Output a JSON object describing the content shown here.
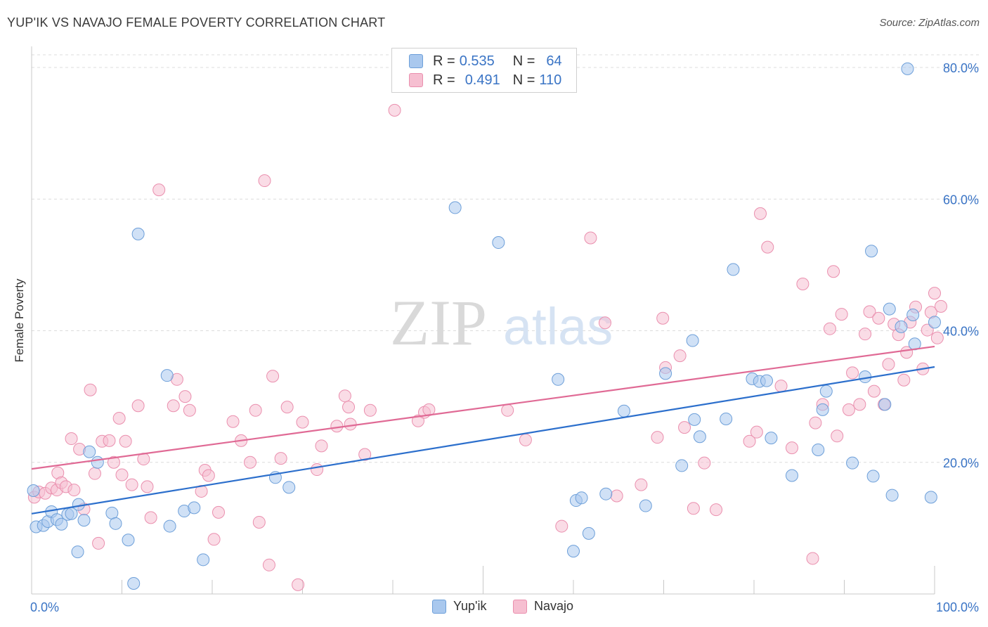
{
  "title": "YUP'IK VS NAVAJO FEMALE POVERTY CORRELATION CHART",
  "source": "Source: ZipAtlas.com",
  "watermark": {
    "zip": "ZIP",
    "atlas": "atlas"
  },
  "legend": {
    "rows": [
      {
        "r_label": "R =",
        "r_value": "0.535",
        "n_label": "N =",
        "n_value": "64"
      },
      {
        "r_label": "R =",
        "r_value": "0.491",
        "n_label": "N =",
        "n_value": "110"
      }
    ]
  },
  "colors": {
    "yupik_fill": "#a9c8ee",
    "yupik_stroke": "#6d9fd9",
    "yupik_line": "#2c6fcc",
    "navajo_fill": "#f6bfd1",
    "navajo_stroke": "#ea8fae",
    "navajo_line": "#e06a95",
    "axis_label": "#3a74c5"
  },
  "chart_data": {
    "type": "scatter",
    "title": "YUP'IK VS NAVAJO FEMALE POVERTY CORRELATION CHART",
    "xlabel": "",
    "ylabel": "Female Poverty",
    "xlim": [
      0,
      100
    ],
    "ylim": [
      0,
      80
    ],
    "x_tick_labels": [
      "0.0%",
      "100.0%"
    ],
    "y_tick_labels": [
      "20.0%",
      "40.0%",
      "60.0%",
      "80.0%"
    ],
    "y_ticks": [
      20,
      40,
      60,
      80
    ],
    "grid": true,
    "legend_position": "top-center",
    "series": [
      {
        "name": "Yup'ik",
        "r": 0.535,
        "n": 64,
        "trend": {
          "x": [
            0,
            100
          ],
          "y": [
            12.2,
            34.5
          ]
        },
        "points": [
          [
            0.2,
            15.7
          ],
          [
            0.5,
            10.2
          ],
          [
            1.3,
            10.4
          ],
          [
            1.8,
            11.0
          ],
          [
            2.2,
            12.5
          ],
          [
            2.8,
            11.3
          ],
          [
            3.3,
            10.6
          ],
          [
            4.0,
            12.1
          ],
          [
            4.4,
            12.2
          ],
          [
            5.2,
            13.6
          ],
          [
            5.8,
            11.2
          ],
          [
            6.4,
            21.6
          ],
          [
            5.1,
            6.4
          ],
          [
            7.3,
            20.0
          ],
          [
            8.9,
            12.3
          ],
          [
            9.3,
            10.7
          ],
          [
            10.7,
            8.2
          ],
          [
            11.3,
            1.6
          ],
          [
            11.8,
            54.7
          ],
          [
            15.0,
            33.2
          ],
          [
            15.3,
            10.3
          ],
          [
            16.9,
            12.6
          ],
          [
            18.0,
            13.1
          ],
          [
            19.0,
            5.2
          ],
          [
            27.0,
            17.7
          ],
          [
            28.5,
            16.2
          ],
          [
            46.9,
            58.7
          ],
          [
            51.7,
            53.4
          ],
          [
            58.3,
            32.6
          ],
          [
            60.0,
            6.5
          ],
          [
            60.3,
            14.2
          ],
          [
            60.9,
            14.6
          ],
          [
            61.7,
            9.2
          ],
          [
            63.6,
            15.2
          ],
          [
            65.6,
            27.8
          ],
          [
            68.0,
            13.4
          ],
          [
            70.2,
            33.5
          ],
          [
            72.0,
            19.5
          ],
          [
            73.2,
            38.5
          ],
          [
            73.4,
            26.5
          ],
          [
            74.0,
            23.9
          ],
          [
            76.9,
            26.6
          ],
          [
            77.7,
            49.3
          ],
          [
            79.8,
            32.7
          ],
          [
            80.6,
            32.3
          ],
          [
            81.4,
            32.4
          ],
          [
            81.9,
            23.7
          ],
          [
            84.2,
            18.0
          ],
          [
            87.1,
            21.9
          ],
          [
            87.6,
            28.0
          ],
          [
            88.0,
            30.8
          ],
          [
            90.9,
            19.9
          ],
          [
            92.3,
            33.0
          ],
          [
            93.0,
            52.1
          ],
          [
            93.2,
            17.9
          ],
          [
            94.5,
            28.8
          ],
          [
            95.0,
            43.3
          ],
          [
            95.3,
            15.0
          ],
          [
            96.3,
            40.6
          ],
          [
            97.0,
            79.8
          ],
          [
            97.6,
            42.4
          ],
          [
            97.8,
            38.0
          ],
          [
            99.6,
            14.7
          ],
          [
            100.0,
            41.3
          ]
        ]
      },
      {
        "name": "Navajo",
        "r": 0.491,
        "n": 110,
        "trend": {
          "x": [
            0,
            100
          ],
          "y": [
            19.0,
            37.6
          ]
        },
        "points": [
          [
            0.3,
            14.7
          ],
          [
            0.8,
            15.5
          ],
          [
            1.5,
            15.3
          ],
          [
            2.2,
            16.1
          ],
          [
            2.8,
            15.8
          ],
          [
            2.9,
            18.4
          ],
          [
            3.3,
            16.9
          ],
          [
            3.8,
            16.3
          ],
          [
            4.4,
            23.6
          ],
          [
            4.7,
            15.8
          ],
          [
            5.3,
            22.0
          ],
          [
            5.8,
            12.9
          ],
          [
            6.5,
            31.0
          ],
          [
            7.0,
            18.3
          ],
          [
            7.4,
            7.7
          ],
          [
            7.8,
            23.2
          ],
          [
            8.6,
            23.3
          ],
          [
            9.1,
            20.0
          ],
          [
            9.7,
            26.7
          ],
          [
            10.0,
            18.1
          ],
          [
            10.4,
            23.2
          ],
          [
            11.1,
            16.6
          ],
          [
            11.8,
            28.6
          ],
          [
            12.4,
            20.5
          ],
          [
            12.8,
            16.3
          ],
          [
            13.2,
            11.6
          ],
          [
            14.1,
            61.4
          ],
          [
            15.7,
            28.6
          ],
          [
            16.1,
            32.6
          ],
          [
            17.0,
            30.0
          ],
          [
            17.5,
            27.9
          ],
          [
            18.8,
            15.6
          ],
          [
            19.2,
            18.8
          ],
          [
            19.6,
            18.0
          ],
          [
            20.2,
            8.3
          ],
          [
            20.7,
            12.4
          ],
          [
            22.3,
            26.2
          ],
          [
            23.2,
            23.3
          ],
          [
            24.2,
            20.0
          ],
          [
            24.8,
            27.9
          ],
          [
            25.2,
            10.9
          ],
          [
            25.8,
            62.8
          ],
          [
            26.3,
            4.4
          ],
          [
            26.7,
            33.1
          ],
          [
            27.6,
            20.6
          ],
          [
            28.3,
            28.4
          ],
          [
            29.5,
            1.4
          ],
          [
            30.0,
            26.1
          ],
          [
            31.6,
            18.9
          ],
          [
            32.1,
            22.5
          ],
          [
            33.8,
            25.5
          ],
          [
            34.7,
            30.1
          ],
          [
            35.1,
            28.4
          ],
          [
            35.3,
            25.8
          ],
          [
            36.9,
            21.2
          ],
          [
            37.5,
            27.9
          ],
          [
            40.2,
            73.5
          ],
          [
            42.8,
            26.3
          ],
          [
            43.5,
            27.6
          ],
          [
            44.0,
            28.0
          ],
          [
            52.7,
            27.9
          ],
          [
            54.7,
            23.4
          ],
          [
            58.7,
            10.3
          ],
          [
            61.9,
            54.1
          ],
          [
            63.5,
            41.2
          ],
          [
            64.8,
            14.9
          ],
          [
            67.5,
            16.6
          ],
          [
            69.3,
            23.8
          ],
          [
            69.9,
            41.9
          ],
          [
            70.2,
            34.4
          ],
          [
            71.8,
            36.2
          ],
          [
            72.3,
            25.3
          ],
          [
            73.3,
            13.0
          ],
          [
            74.5,
            19.9
          ],
          [
            75.8,
            12.8
          ],
          [
            79.5,
            23.2
          ],
          [
            80.3,
            24.6
          ],
          [
            80.7,
            57.8
          ],
          [
            81.5,
            52.7
          ],
          [
            83.0,
            31.6
          ],
          [
            84.2,
            22.2
          ],
          [
            85.4,
            47.1
          ],
          [
            86.5,
            5.4
          ],
          [
            86.8,
            26.0
          ],
          [
            87.6,
            28.8
          ],
          [
            88.4,
            40.3
          ],
          [
            88.8,
            49.0
          ],
          [
            89.2,
            24.0
          ],
          [
            89.7,
            42.5
          ],
          [
            90.5,
            28.0
          ],
          [
            90.9,
            33.6
          ],
          [
            91.7,
            28.8
          ],
          [
            92.3,
            39.5
          ],
          [
            92.8,
            42.9
          ],
          [
            93.3,
            30.8
          ],
          [
            93.8,
            41.9
          ],
          [
            94.4,
            28.8
          ],
          [
            94.9,
            34.9
          ],
          [
            95.5,
            41.0
          ],
          [
            96.0,
            39.4
          ],
          [
            96.6,
            32.5
          ],
          [
            96.9,
            36.7
          ],
          [
            97.3,
            41.3
          ],
          [
            97.9,
            43.6
          ],
          [
            98.7,
            34.2
          ],
          [
            99.2,
            40.1
          ],
          [
            99.6,
            42.8
          ],
          [
            100.0,
            45.7
          ],
          [
            100.3,
            38.9
          ],
          [
            100.7,
            43.7
          ]
        ]
      }
    ]
  },
  "bottom_legend": {
    "yupik": "Yup'ik",
    "navajo": "Navajo"
  }
}
